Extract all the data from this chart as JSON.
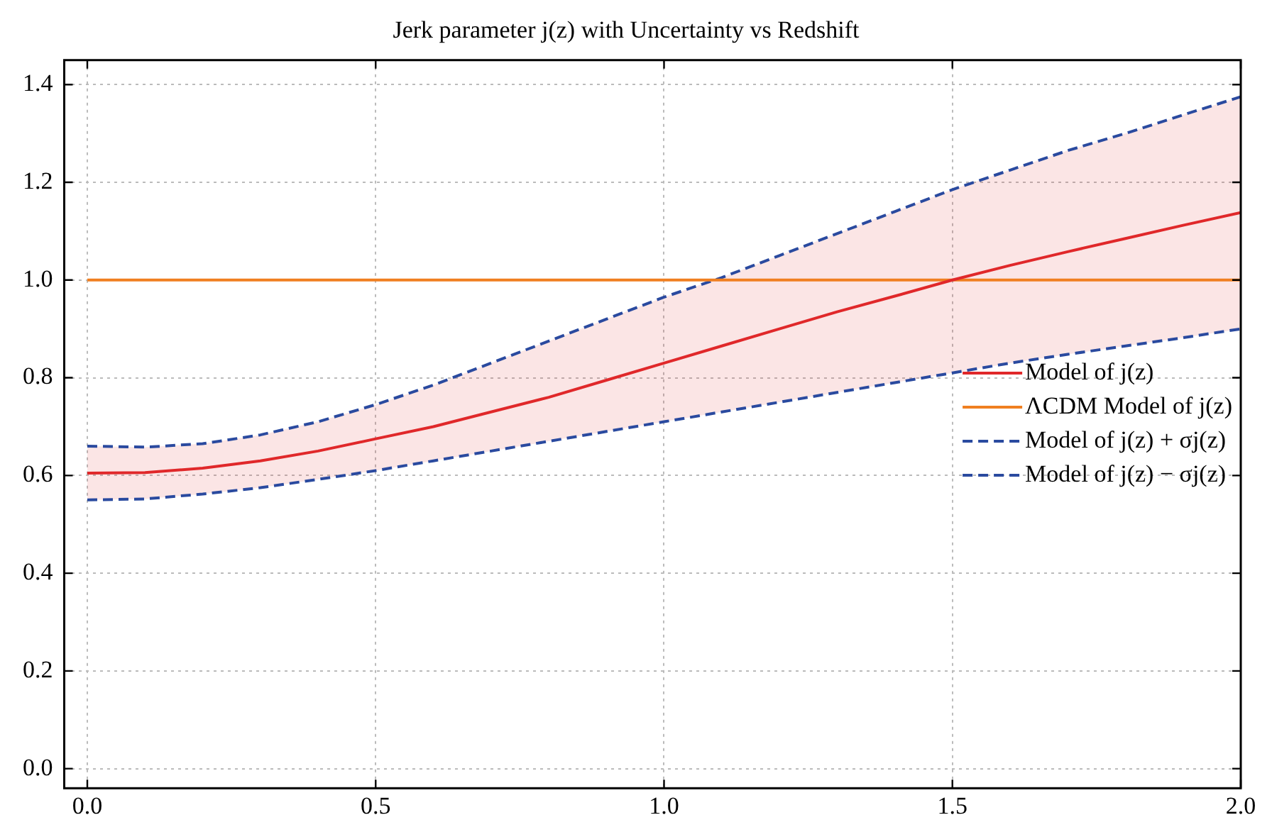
{
  "chart_data": {
    "type": "line",
    "title": "Jerk parameter j(z) with Uncertainty vs Redshift",
    "x": [
      0,
      0.1,
      0.2,
      0.3,
      0.4,
      0.5,
      0.6,
      0.7,
      0.8,
      0.9,
      1.0,
      1.1,
      1.2,
      1.3,
      1.4,
      1.5,
      1.6,
      1.7,
      1.8,
      1.9,
      2.0
    ],
    "series": [
      {
        "name": "Model of j(z)",
        "color": "#e0282a",
        "line_style": "solid",
        "values": [
          0.605,
          0.606,
          0.615,
          0.63,
          0.65,
          0.675,
          0.7,
          0.73,
          0.76,
          0.795,
          0.83,
          0.865,
          0.9,
          0.935,
          0.967,
          1.0,
          1.03,
          1.058,
          1.085,
          1.112,
          1.138
        ],
        "lower": [
          0.55,
          0.552,
          0.562,
          0.575,
          0.592,
          0.61,
          0.63,
          0.65,
          0.67,
          0.69,
          0.71,
          0.73,
          0.75,
          0.77,
          0.79,
          0.81,
          0.83,
          0.848,
          0.865,
          0.882,
          0.9
        ],
        "upper": [
          0.66,
          0.658,
          0.665,
          0.683,
          0.71,
          0.745,
          0.785,
          0.83,
          0.875,
          0.92,
          0.965,
          1.005,
          1.05,
          1.095,
          1.14,
          1.185,
          1.225,
          1.265,
          1.3,
          1.338,
          1.375
        ]
      },
      {
        "name": "ΛCDM Model of j(z)",
        "color": "#f07f20",
        "line_style": "solid",
        "values": [
          1,
          1,
          1,
          1,
          1,
          1,
          1,
          1,
          1,
          1,
          1,
          1,
          1,
          1,
          1,
          1,
          1,
          1,
          1,
          1,
          1
        ]
      },
      {
        "name": "Model of j(z) + σj(z)",
        "color": "#2a4a9f",
        "line_style": "dashed",
        "values": [
          0.66,
          0.658,
          0.665,
          0.683,
          0.71,
          0.745,
          0.785,
          0.83,
          0.875,
          0.92,
          0.965,
          1.005,
          1.05,
          1.095,
          1.14,
          1.185,
          1.225,
          1.265,
          1.3,
          1.338,
          1.375
        ]
      },
      {
        "name": "Model of j(z) − σj(z)",
        "color": "#2a4a9f",
        "line_style": "dashed",
        "values": [
          0.55,
          0.552,
          0.562,
          0.575,
          0.592,
          0.61,
          0.63,
          0.65,
          0.67,
          0.69,
          0.71,
          0.73,
          0.75,
          0.77,
          0.79,
          0.81,
          0.83,
          0.848,
          0.865,
          0.882,
          0.9
        ]
      }
    ],
    "xlim": [
      -0.04,
      2.0
    ],
    "ylim": [
      -0.04,
      1.45
    ],
    "xticks": [
      {
        "value": 0,
        "label": "0.0"
      },
      0.5,
      {
        "value": 1,
        "label": "1.0"
      },
      1.5,
      {
        "value": 2,
        "label": "2.0"
      }
    ],
    "yticks": [
      {
        "value": 0,
        "label": "0.0"
      },
      0.2,
      0.4,
      0.6,
      0.8,
      {
        "value": 1,
        "label": "1.0"
      },
      1.2,
      1.4
    ],
    "grid": true,
    "legend": "right",
    "marker": "none"
  }
}
